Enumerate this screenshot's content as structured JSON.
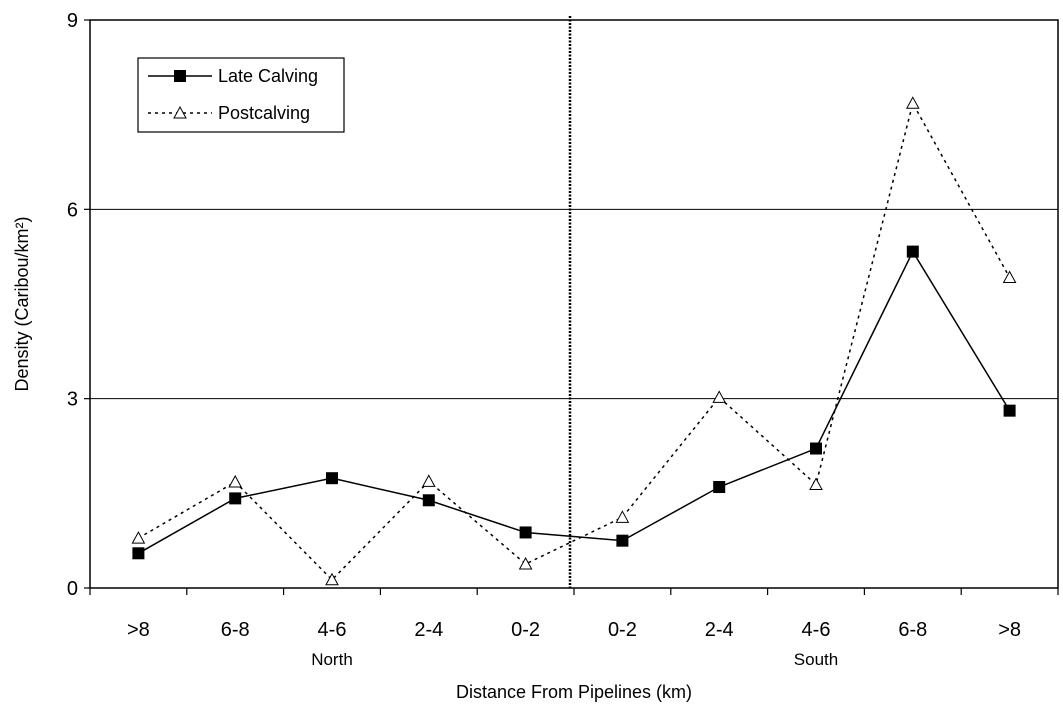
{
  "chart_data": {
    "type": "line",
    "categories": [
      ">8",
      "6-8",
      "4-6",
      "2-4",
      "0-2",
      "0-2",
      "2-4",
      "4-6",
      "6-8",
      ">8"
    ],
    "groups": [
      {
        "label": "North",
        "start": 0,
        "end": 4
      },
      {
        "label": "South",
        "start": 5,
        "end": 9
      }
    ],
    "series": [
      {
        "name": "Late Calving",
        "values": [
          0.55,
          1.42,
          1.74,
          1.39,
          0.88,
          0.75,
          1.6,
          2.21,
          5.33,
          2.81
        ],
        "style": "solid",
        "marker": "square",
        "color": "#000000"
      },
      {
        "name": "Postcalving",
        "values": [
          0.79,
          1.68,
          0.13,
          1.69,
          0.38,
          1.12,
          3.02,
          1.64,
          7.68,
          4.92
        ],
        "style": "dotted",
        "marker": "triangle",
        "color": "#000000"
      }
    ],
    "title": "",
    "xlabel": "Distance From Pipelines (km)",
    "ylabel": "Density (Caribou/km²)",
    "ylim": [
      0,
      9
    ],
    "yticks": [
      0,
      3,
      6,
      9
    ],
    "grid": "horizontal",
    "legend": "top-left",
    "divider": "vertical dotted line between North and South 0-2 categories"
  }
}
